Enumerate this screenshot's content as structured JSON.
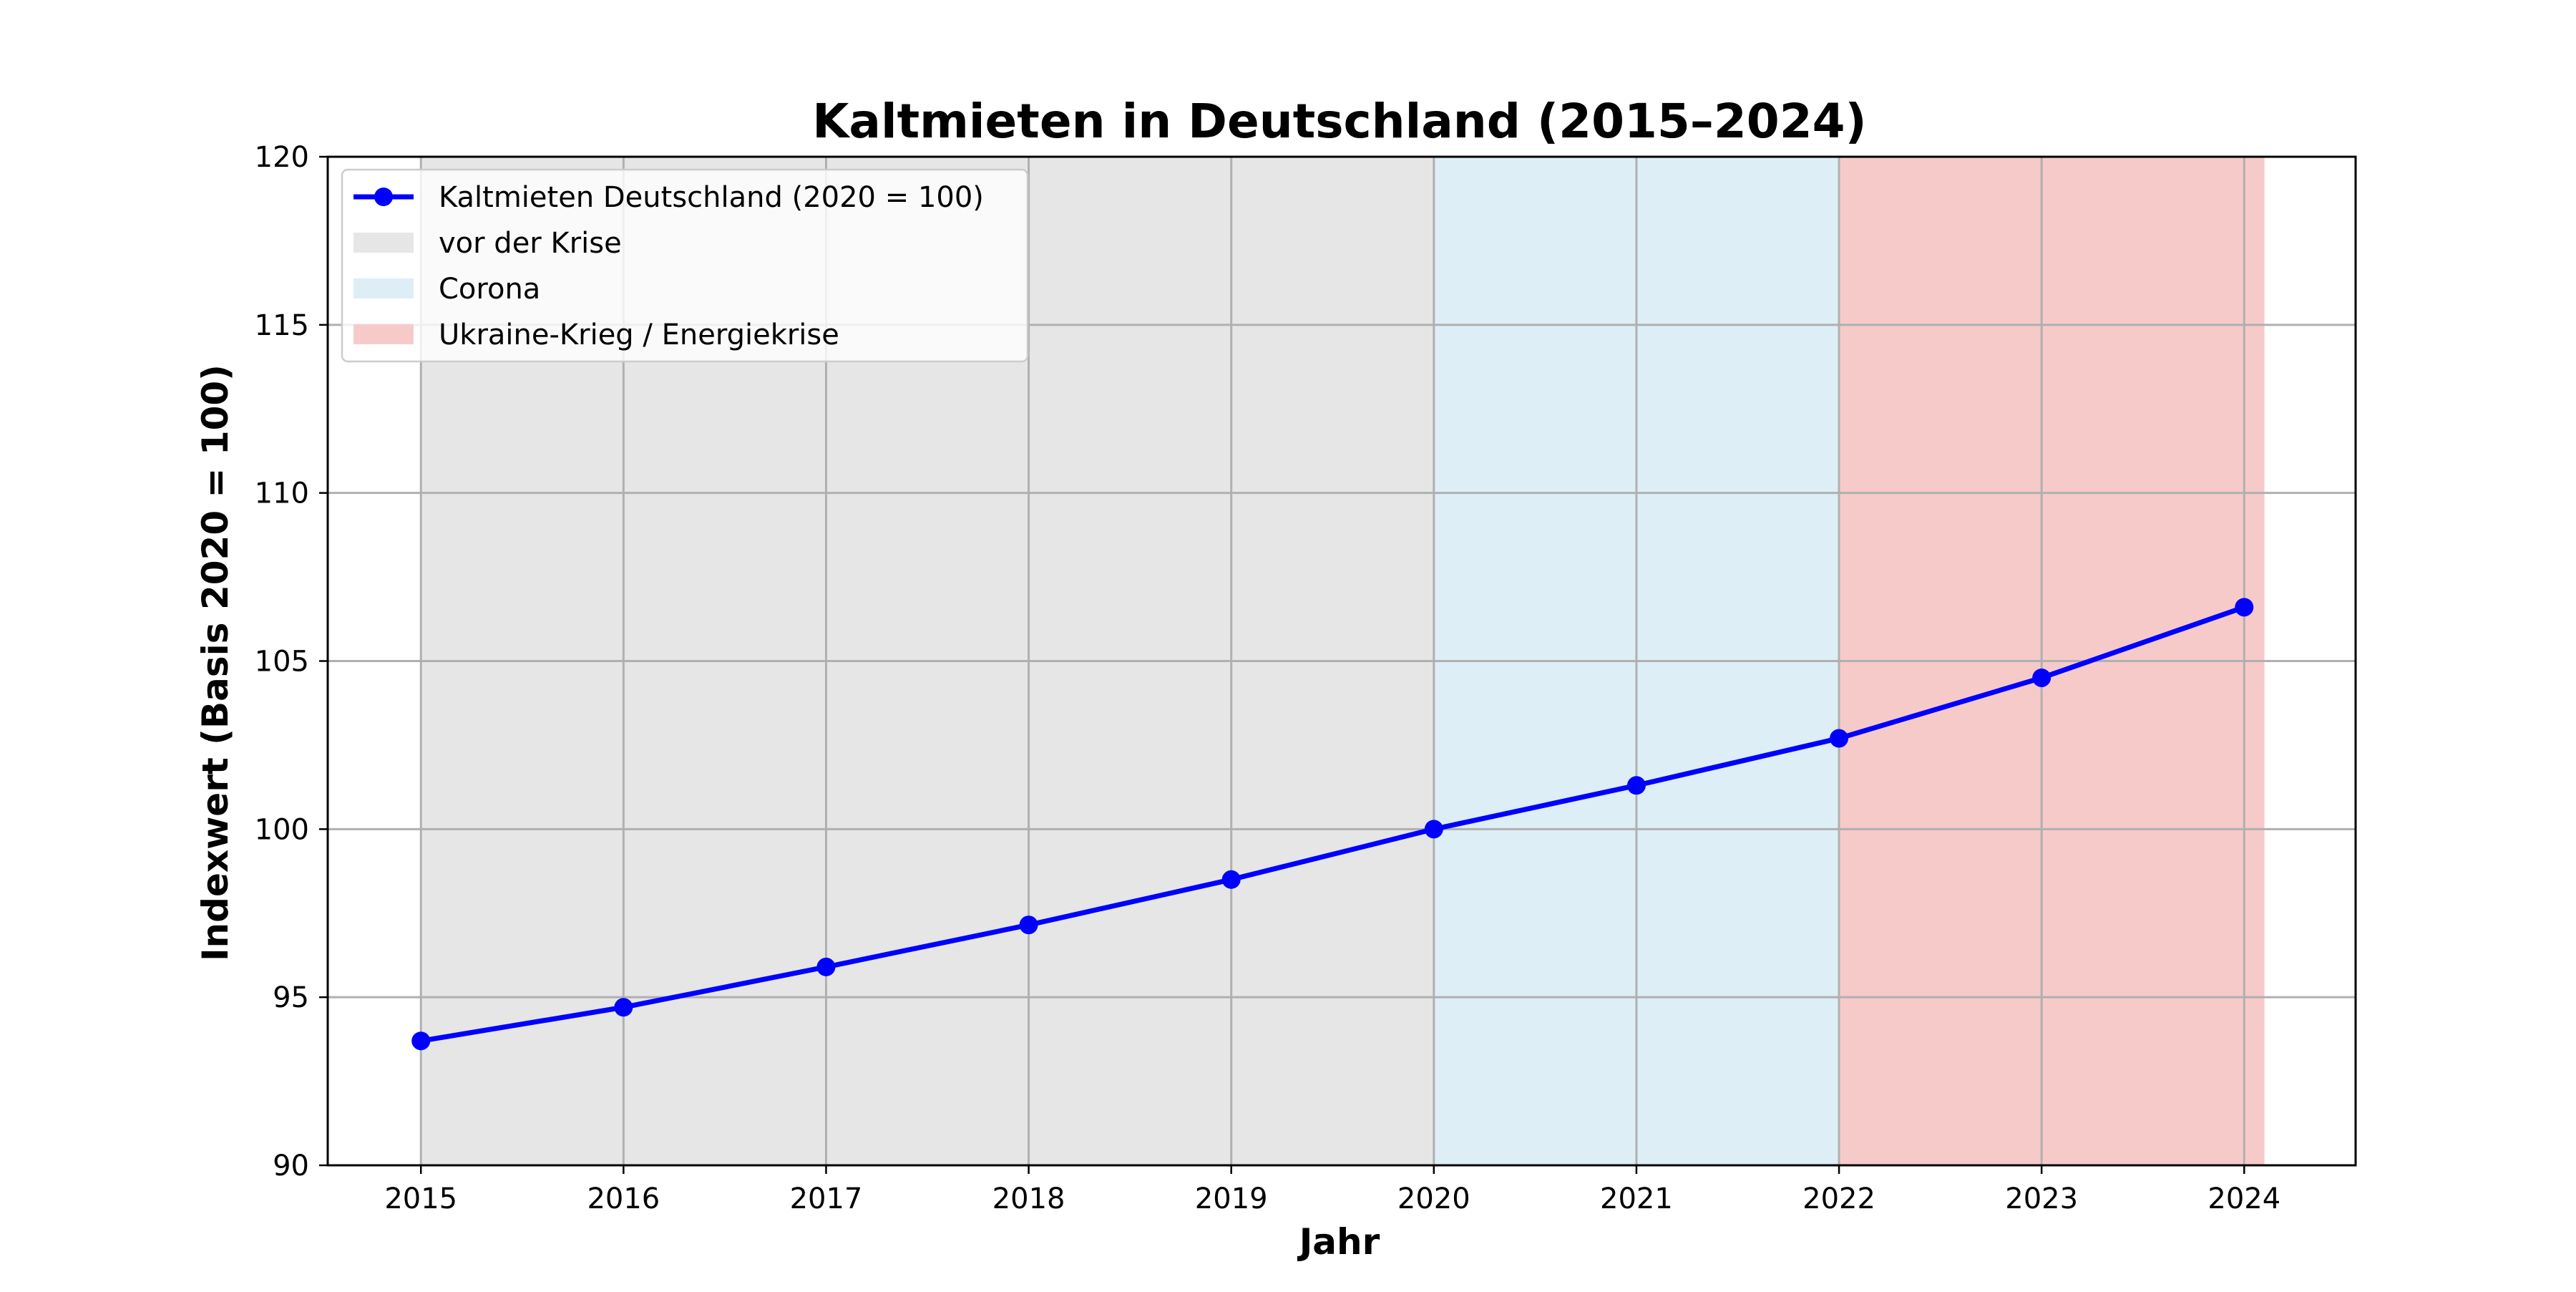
{
  "chart_data": {
    "type": "line",
    "title": "Kaltmieten in Deutschland (2015–2024)",
    "xlabel": "Jahr",
    "ylabel": "Indexwert (Basis 2020 = 100)",
    "x": [
      2015,
      2016,
      2017,
      2018,
      2019,
      2020,
      2021,
      2022,
      2023,
      2024
    ],
    "xlim": [
      2014.54,
      2024.55
    ],
    "ylim": [
      90,
      120
    ],
    "yticks": [
      90,
      95,
      100,
      105,
      110,
      115,
      120
    ],
    "grid": true,
    "legend_position": "top-left",
    "series": [
      {
        "name": "Kaltmieten Deutschland (2020 = 100)",
        "values": [
          93.7,
          94.7,
          95.9,
          97.15,
          98.5,
          100.0,
          101.3,
          102.7,
          104.5,
          106.6
        ],
        "color": "#0000ff",
        "marker": "circle"
      }
    ],
    "spans": [
      {
        "name": "vor der Krise",
        "x_start": 2015,
        "x_end": 2020,
        "color": "#e6e6e6"
      },
      {
        "name": "Corona",
        "x_start": 2020,
        "x_end": 2022,
        "color": "#ddeef6"
      },
      {
        "name": "Ukraine-Krieg / Energiekrise",
        "x_start": 2022,
        "x_end": 2024.1,
        "color": "#f7caca"
      }
    ]
  }
}
